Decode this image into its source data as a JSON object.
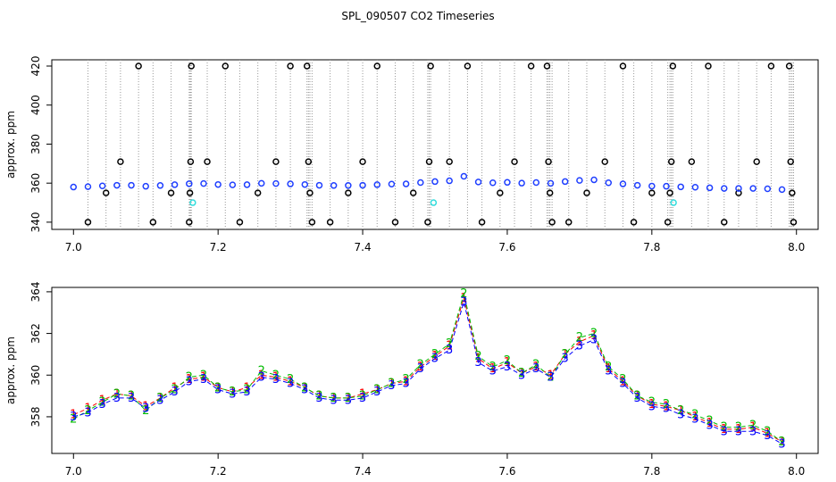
{
  "chart_data": [
    {
      "type": "scatter",
      "title": "SPL_090507  CO2 Timeseries",
      "ylabel": "approx. ppm",
      "xlim": [
        6.97,
        8.03
      ],
      "ylim": [
        336.3,
        423.2
      ],
      "xticks": [
        {
          "value": 7,
          "label": "7.0"
        },
        7.2,
        7.4,
        7.6,
        7.8,
        {
          "value": 8,
          "label": "8.0"
        }
      ],
      "yticks": [
        340,
        360,
        380,
        400,
        420
      ],
      "series": [
        {
          "color": "#000000",
          "marker": "circle",
          "drop_lines": true,
          "x": [
            7.02,
            7.045,
            7.065,
            7.09,
            7.11,
            7.135,
            7.16,
            7.161,
            7.162,
            7.163,
            7.185,
            7.21,
            7.23,
            7.255,
            7.28,
            7.3,
            7.323,
            7.325,
            7.327,
            7.33,
            7.355,
            7.38,
            7.4,
            7.42,
            7.445,
            7.47,
            7.49,
            7.492,
            7.494,
            7.52,
            7.545,
            7.565,
            7.59,
            7.61,
            7.633,
            7.655,
            7.657,
            7.659,
            7.662,
            7.685,
            7.71,
            7.735,
            7.76,
            7.775,
            7.8,
            7.822,
            7.825,
            7.827,
            7.829,
            7.855,
            7.878,
            7.9,
            7.92,
            7.945,
            7.965,
            7.99,
            7.992,
            7.994,
            7.996
          ],
          "values": [
            340,
            355,
            371,
            420,
            340,
            355,
            340,
            355,
            371,
            420,
            371,
            420,
            340,
            355,
            371,
            420,
            420,
            371,
            355,
            340,
            340,
            355,
            371,
            420,
            340,
            355,
            340,
            371,
            420,
            371,
            420,
            340,
            355,
            371,
            420,
            420,
            371,
            355,
            340,
            340,
            355,
            371,
            420,
            340,
            355,
            340,
            355,
            371,
            420,
            371,
            420,
            340,
            355,
            371,
            420,
            420,
            371,
            355,
            340
          ]
        },
        {
          "color": "#1f3fff",
          "marker": "circle",
          "x": [
            7.0,
            7.02,
            7.04,
            7.06,
            7.08,
            7.1,
            7.12,
            7.14,
            7.16,
            7.18,
            7.2,
            7.22,
            7.24,
            7.26,
            7.28,
            7.3,
            7.32,
            7.34,
            7.36,
            7.38,
            7.4,
            7.42,
            7.44,
            7.46,
            7.48,
            7.5,
            7.52,
            7.54,
            7.56,
            7.58,
            7.6,
            7.62,
            7.64,
            7.66,
            7.68,
            7.7,
            7.72,
            7.74,
            7.76,
            7.78,
            7.8,
            7.82,
            7.84,
            7.86,
            7.88,
            7.9,
            7.92,
            7.94,
            7.96,
            7.98
          ],
          "values": [
            358.0,
            358.2,
            358.6,
            358.9,
            358.9,
            358.4,
            358.8,
            359.2,
            359.7,
            359.8,
            359.3,
            359.1,
            359.2,
            359.9,
            359.8,
            359.6,
            359.3,
            358.9,
            358.8,
            358.8,
            358.9,
            359.2,
            359.5,
            359.6,
            360.3,
            360.8,
            361.2,
            363.5,
            360.6,
            360.2,
            360.4,
            360.0,
            360.3,
            359.9,
            360.8,
            361.4,
            361.7,
            360.2,
            359.6,
            358.9,
            358.5,
            358.4,
            358.1,
            357.9,
            357.6,
            357.3,
            357.3,
            357.3,
            357.1,
            356.7
          ]
        },
        {
          "color": "#33dddd",
          "marker": "circle",
          "x": [
            7.165,
            7.498,
            7.83
          ],
          "values": [
            350,
            350,
            350
          ]
        }
      ]
    },
    {
      "type": "line",
      "ylabel": "approx. ppm",
      "xlim": [
        6.97,
        8.03
      ],
      "ylim": [
        356.24,
        364.21
      ],
      "xticks": [
        {
          "value": 7,
          "label": "7.0"
        },
        7.2,
        7.4,
        7.6,
        7.8,
        {
          "value": 8,
          "label": "8.0"
        }
      ],
      "yticks": [
        358,
        360,
        362,
        364
      ],
      "x": [
        7.0,
        7.02,
        7.04,
        7.06,
        7.08,
        7.1,
        7.12,
        7.14,
        7.16,
        7.18,
        7.2,
        7.22,
        7.24,
        7.26,
        7.28,
        7.3,
        7.32,
        7.34,
        7.36,
        7.38,
        7.4,
        7.42,
        7.44,
        7.46,
        7.48,
        7.5,
        7.52,
        7.54,
        7.56,
        7.58,
        7.6,
        7.62,
        7.64,
        7.66,
        7.68,
        7.7,
        7.72,
        7.74,
        7.76,
        7.78,
        7.8,
        7.82,
        7.84,
        7.86,
        7.88,
        7.9,
        7.92,
        7.94,
        7.96,
        7.98
      ],
      "series": [
        {
          "name": "1",
          "color": "#ff0000",
          "values": [
            358.1,
            358.4,
            358.8,
            359.1,
            359.0,
            358.5,
            358.9,
            359.4,
            359.8,
            359.9,
            359.4,
            359.2,
            359.4,
            360.0,
            359.9,
            359.7,
            359.4,
            359.0,
            358.9,
            358.9,
            359.1,
            359.3,
            359.6,
            359.7,
            360.4,
            360.9,
            361.4,
            363.7,
            360.8,
            360.3,
            360.6,
            360.1,
            360.4,
            360.0,
            361.0,
            361.6,
            361.9,
            360.3,
            359.7,
            359.0,
            358.6,
            358.5,
            358.3,
            358.0,
            357.7,
            357.4,
            357.4,
            357.5,
            357.2,
            356.8
          ]
        },
        {
          "name": "2",
          "color": "#00bb00",
          "values": [
            357.9,
            358.3,
            358.7,
            359.1,
            359.0,
            358.3,
            358.9,
            359.3,
            359.9,
            360.0,
            359.4,
            359.2,
            359.3,
            360.2,
            360.0,
            359.8,
            359.4,
            359.0,
            358.9,
            358.9,
            359.0,
            359.3,
            359.6,
            359.8,
            360.5,
            361.0,
            361.5,
            363.9,
            360.9,
            360.4,
            360.7,
            360.1,
            360.5,
            359.9,
            361.0,
            361.8,
            362.0,
            360.4,
            359.8,
            359.0,
            358.7,
            358.6,
            358.3,
            358.1,
            357.8,
            357.5,
            357.5,
            357.6,
            357.3,
            356.8
          ]
        },
        {
          "name": "3",
          "color": "#0000ff",
          "values": [
            358.0,
            358.2,
            358.6,
            358.9,
            358.9,
            358.4,
            358.8,
            359.2,
            359.7,
            359.8,
            359.3,
            359.1,
            359.2,
            359.9,
            359.8,
            359.6,
            359.3,
            358.9,
            358.8,
            358.8,
            358.9,
            359.2,
            359.5,
            359.6,
            360.3,
            360.8,
            361.2,
            363.5,
            360.6,
            360.2,
            360.4,
            360.0,
            360.3,
            359.9,
            360.8,
            361.4,
            361.7,
            360.2,
            359.6,
            358.9,
            358.5,
            358.4,
            358.1,
            357.9,
            357.6,
            357.3,
            357.3,
            357.3,
            357.1,
            356.7
          ]
        }
      ]
    }
  ]
}
